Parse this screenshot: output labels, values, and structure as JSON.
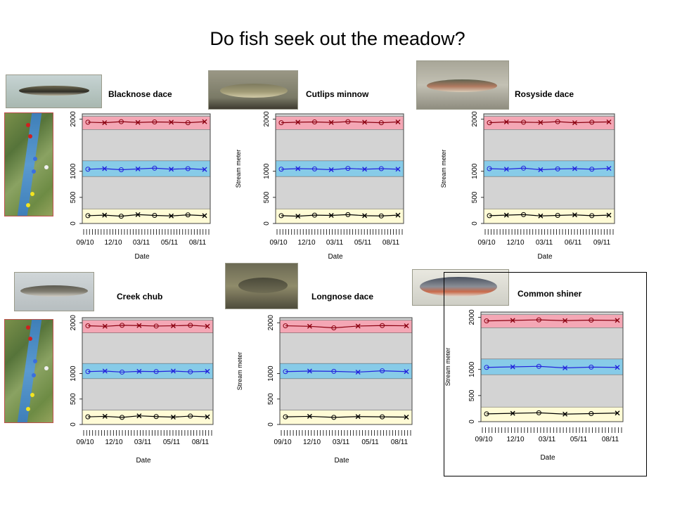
{
  "slide": {
    "title": "Do fish seek out the meadow?"
  },
  "colors": {
    "meadow_band": "#f4a7b5",
    "mid_band": "#87cbe8",
    "low_band": "#fffbd6",
    "gray_band": "#d3d3d3",
    "upstream": "#8b0010",
    "middle": "#2222dd",
    "downstream": "#000000"
  },
  "chart_data": [
    {
      "type": "scatter",
      "title": "Blacknose dace",
      "xlabel": "Date",
      "ylabel": "",
      "x_ticks": [
        "09/10",
        "12/10",
        "03/11",
        "05/11",
        "08/11"
      ],
      "y_ticks": [
        "0",
        "500",
        "1000",
        "2000"
      ],
      "bands": [
        {
          "from": 1800,
          "to": 2050,
          "name": "upper"
        },
        {
          "from": 900,
          "to": 1200,
          "name": "middle"
        },
        {
          "from": 0,
          "to": 280,
          "name": "lower"
        }
      ],
      "series": [
        {
          "values": [
            1940,
            1930,
            1950,
            1935,
            1945,
            1940,
            1930,
            1950
          ]
        },
        {
          "values": [
            1040,
            1050,
            1030,
            1045,
            1060,
            1040,
            1050,
            1035
          ]
        },
        {
          "values": [
            150,
            160,
            140,
            170,
            155,
            145,
            165,
            150
          ]
        }
      ]
    },
    {
      "type": "scatter",
      "title": "Cutlips minnow",
      "xlabel": "Date",
      "ylabel": "Stream meter",
      "x_ticks": [
        "09/10",
        "12/10",
        "03/11",
        "05/11",
        "08/11"
      ],
      "y_ticks": [
        "0",
        "500",
        "1000",
        "2000"
      ],
      "bands": [
        {
          "from": 1800,
          "to": 2050,
          "name": "upper"
        },
        {
          "from": 900,
          "to": 1200,
          "name": "middle"
        },
        {
          "from": 0,
          "to": 280,
          "name": "lower"
        }
      ],
      "series": [
        {
          "values": [
            1930,
            1940,
            1945,
            1935,
            1950,
            1940,
            1930,
            1945
          ]
        },
        {
          "values": [
            1040,
            1050,
            1045,
            1030,
            1055,
            1040,
            1050,
            1040
          ]
        },
        {
          "values": [
            150,
            140,
            160,
            155,
            170,
            150,
            145,
            160
          ]
        }
      ]
    },
    {
      "type": "scatter",
      "title": "Rosyside dace",
      "xlabel": "Date",
      "ylabel": "Stream meter",
      "x_ticks": [
        "09/10",
        "12/10",
        "03/11",
        "06/11",
        "09/11"
      ],
      "y_ticks": [
        "0",
        "500",
        "1000",
        "2000"
      ],
      "bands": [
        {
          "from": 1800,
          "to": 2050,
          "name": "upper"
        },
        {
          "from": 900,
          "to": 1200,
          "name": "middle"
        },
        {
          "from": 0,
          "to": 280,
          "name": "lower"
        }
      ],
      "series": [
        {
          "values": [
            1930,
            1945,
            1940,
            1935,
            1950,
            1930,
            1940,
            1945
          ]
        },
        {
          "values": [
            1050,
            1040,
            1060,
            1030,
            1045,
            1050,
            1040,
            1055
          ]
        },
        {
          "values": [
            150,
            160,
            170,
            145,
            155,
            165,
            150,
            160
          ]
        }
      ]
    },
    {
      "type": "scatter",
      "title": "Creek chub",
      "xlabel": "Date",
      "ylabel": "",
      "x_ticks": [
        "09/10",
        "12/10",
        "03/11",
        "05/11",
        "08/11"
      ],
      "y_ticks": [
        "0",
        "500",
        "1000",
        "2000"
      ],
      "bands": [
        {
          "from": 1800,
          "to": 2050,
          "name": "upper"
        },
        {
          "from": 900,
          "to": 1200,
          "name": "middle"
        },
        {
          "from": 0,
          "to": 280,
          "name": "lower"
        }
      ],
      "series": [
        {
          "values": [
            1940,
            1930,
            1950,
            1945,
            1935,
            1940,
            1950,
            1930
          ]
        },
        {
          "values": [
            1040,
            1050,
            1030,
            1045,
            1040,
            1050,
            1035,
            1045
          ]
        },
        {
          "values": [
            150,
            160,
            140,
            170,
            155,
            145,
            165,
            150
          ]
        }
      ]
    },
    {
      "type": "scatter",
      "title": "Longnose dace",
      "xlabel": "Date",
      "ylabel": "Stream meter",
      "x_ticks": [
        "09/10",
        "12/10",
        "03/11",
        "05/11",
        "08/11"
      ],
      "y_ticks": [
        "0",
        "500",
        "1000",
        "2000"
      ],
      "bands": [
        {
          "from": 1800,
          "to": 2050,
          "name": "upper"
        },
        {
          "from": 900,
          "to": 1200,
          "name": "middle"
        },
        {
          "from": 0,
          "to": 280,
          "name": "lower"
        }
      ],
      "series": [
        {
          "values": [
            1940,
            1930,
            1900,
            1935,
            1945,
            1940
          ]
        },
        {
          "values": [
            1040,
            1050,
            1045,
            1030,
            1055,
            1040
          ]
        },
        {
          "values": [
            150,
            160,
            140,
            155,
            150,
            145
          ]
        }
      ]
    },
    {
      "type": "scatter",
      "title": "Common shiner",
      "xlabel": "Date",
      "ylabel": "Stream meter",
      "x_ticks": [
        "09/10",
        "12/10",
        "03/11",
        "05/11",
        "08/11"
      ],
      "y_ticks": [
        "0",
        "500",
        "1000",
        "2000"
      ],
      "bands": [
        {
          "from": 1800,
          "to": 2050,
          "name": "upper"
        },
        {
          "from": 900,
          "to": 1200,
          "name": "middle"
        },
        {
          "from": 0,
          "to": 280,
          "name": "lower"
        }
      ],
      "series": [
        {
          "values": [
            1930,
            1940,
            1950,
            1935,
            1945,
            1940
          ]
        },
        {
          "values": [
            1040,
            1050,
            1060,
            1030,
            1045,
            1040
          ]
        },
        {
          "values": [
            150,
            160,
            170,
            145,
            155,
            165
          ]
        }
      ]
    }
  ]
}
